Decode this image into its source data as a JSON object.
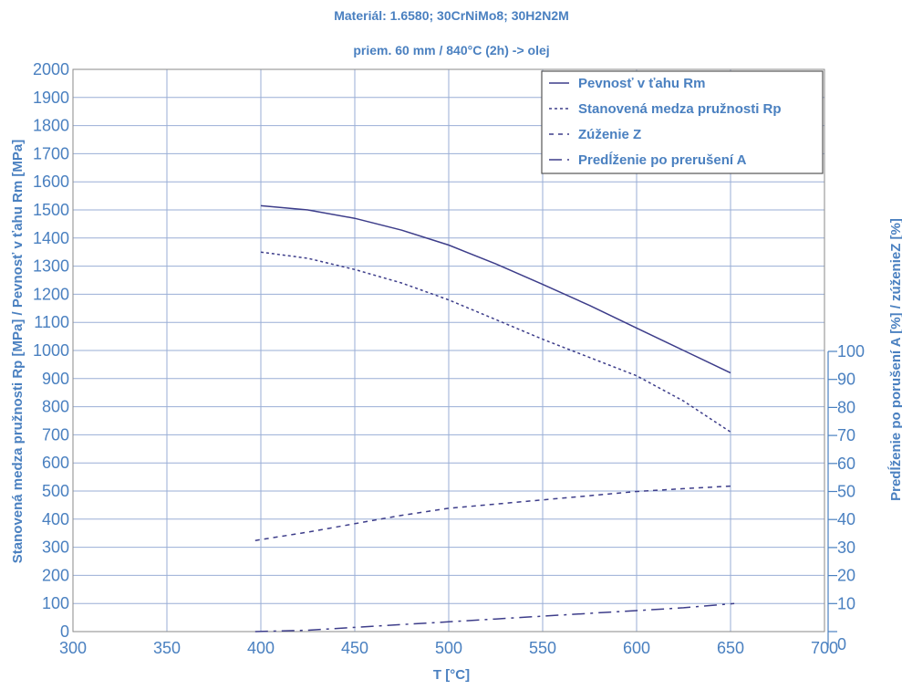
{
  "chart_data": {
    "type": "line",
    "title": "Materiál: 1.6580; 30CrNiMo8; 30H2N2M",
    "subtitle": "priem. 60 mm / 840°C (2h) -> olej",
    "xlabel": "T [°C]",
    "ylabel": "Stanovená medza pružnosti Rp [MPa] / Pevnosť v ťahu Rm [MPa]",
    "y2label": "Predĺženie po porušení A [%] / zúženieZ [%]",
    "xlim": [
      300,
      700
    ],
    "ylim": [
      0,
      2000
    ],
    "y2lim": [
      0,
      100
    ],
    "grid": true,
    "legend_position": "top-right",
    "x_ticks": [
      "300",
      "350",
      "400",
      "450",
      "500",
      "550",
      "600",
      "650",
      "700"
    ],
    "y_ticks": [
      "0",
      "100",
      "200",
      "300",
      "400",
      "500",
      "600",
      "700",
      "800",
      "900",
      "1000",
      "1100",
      "1200",
      "1300",
      "1400",
      "1500",
      "1600",
      "1700",
      "1800",
      "1900",
      "2000"
    ],
    "y2_ticks": [
      "0",
      "10",
      "20",
      "30",
      "40",
      "50",
      "60",
      "70",
      "80",
      "90",
      "100"
    ],
    "series": [
      {
        "name": "Pevnosť v ťahu Rm",
        "axis": "left",
        "dash": "solid",
        "color": "#3d3d8a",
        "x": [
          400,
          425,
          450,
          475,
          500,
          525,
          550,
          575,
          600,
          625,
          650
        ],
        "y": [
          1515,
          1500,
          1470,
          1428,
          1375,
          1308,
          1235,
          1160,
          1080,
          1000,
          920
        ]
      },
      {
        "name": "Stanovená medza pružnosti Rp",
        "axis": "left",
        "dash": "dotted",
        "color": "#3d3d8a",
        "x": [
          400,
          425,
          450,
          475,
          500,
          525,
          550,
          575,
          600,
          625,
          650
        ],
        "y": [
          1350,
          1328,
          1288,
          1240,
          1180,
          1110,
          1040,
          975,
          910,
          820,
          710
        ]
      },
      {
        "name": "Zúženie Z",
        "axis": "right",
        "dash": "dashed",
        "color": "#3d3d8a",
        "x": [
          397,
          425,
          450,
          475,
          500,
          525,
          550,
          575,
          600,
          625,
          652
        ],
        "y": [
          32.5,
          35.5,
          38.5,
          41.5,
          44,
          45.5,
          47,
          48.5,
          50,
          51,
          52
        ]
      },
      {
        "name": "Predĺženie po prerušení A",
        "axis": "right",
        "dash": "dashdot",
        "color": "#3d3d8a",
        "x": [
          397,
          425,
          450,
          475,
          500,
          525,
          550,
          575,
          600,
          625,
          652
        ],
        "y": [
          0,
          0.5,
          1.5,
          2.5,
          3.5,
          4.5,
          5.5,
          6.5,
          7.5,
          8.5,
          10
        ]
      }
    ]
  }
}
